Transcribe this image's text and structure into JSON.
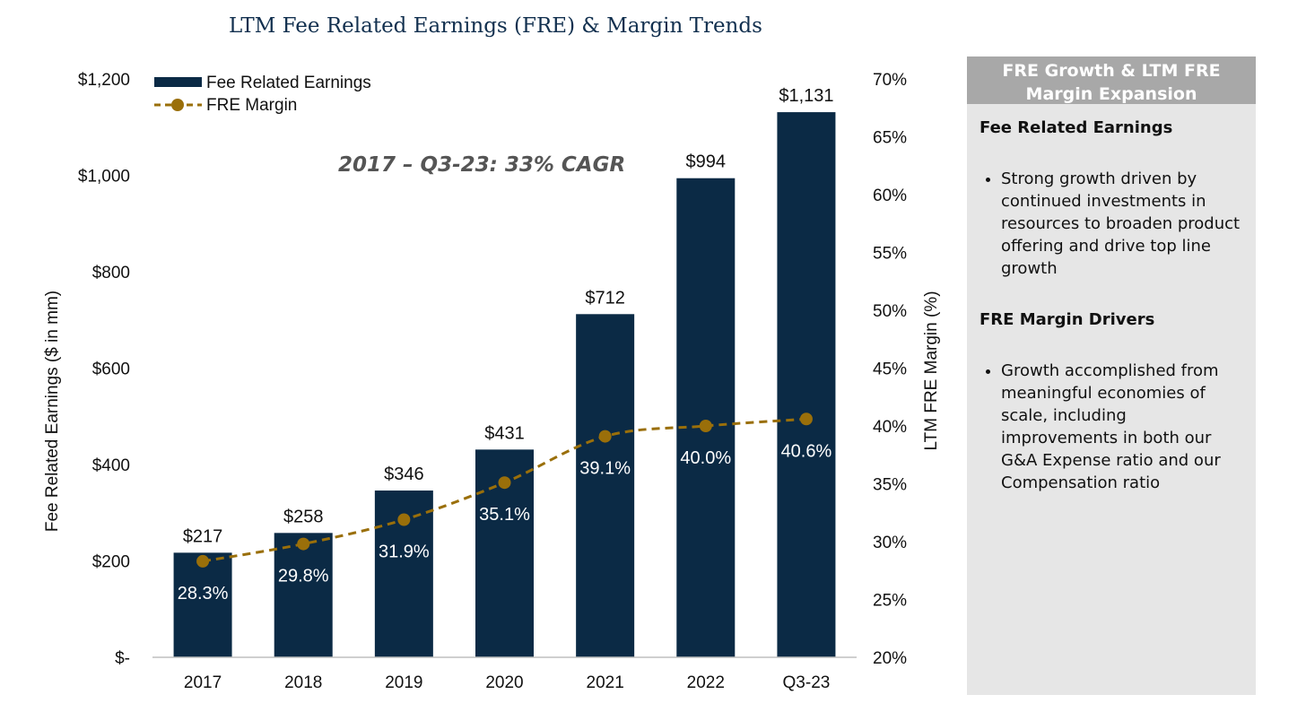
{
  "title": "LTM Fee Related Earnings (FRE) & Margin Trends",
  "chart_data": {
    "type": "bar",
    "categories": [
      "2017",
      "2018",
      "2019",
      "2020",
      "2021",
      "2022",
      "Q3-23"
    ],
    "series": [
      {
        "name": "Fee Related Earnings",
        "type": "bar",
        "axis": "left",
        "values": [
          217,
          258,
          346,
          431,
          712,
          994,
          1131
        ],
        "labels": [
          "$217",
          "$258",
          "$346",
          "$431",
          "$712",
          "$994",
          "$1,131"
        ],
        "color": "#0b2a45"
      },
      {
        "name": "FRE Margin",
        "type": "line",
        "axis": "right",
        "values": [
          28.3,
          29.8,
          31.9,
          35.1,
          39.1,
          40.0,
          40.6
        ],
        "labels": [
          "28.3%",
          "29.8%",
          "31.9%",
          "35.1%",
          "39.1%",
          "40.0%",
          "40.6%"
        ],
        "color": "#9a6f0a",
        "style": "dashed-with-markers"
      }
    ],
    "y_left": {
      "label": "Fee Related Earnings ($ in mm)",
      "lim": [
        0,
        1200
      ],
      "ticks": [
        "$-",
        "$200",
        "$400",
        "$600",
        "$800",
        "$1,000",
        "$1,200"
      ]
    },
    "y_right": {
      "label": "LTM FRE Margin (%)",
      "lim": [
        20,
        70
      ],
      "ticks": [
        "20%",
        "25%",
        "30%",
        "35%",
        "40%",
        "45%",
        "50%",
        "55%",
        "60%",
        "65%",
        "70%"
      ]
    },
    "annotation": "2017 – Q3-23: 33% CAGR",
    "legend_position": "top-left",
    "grid": false
  },
  "panel": {
    "header": "FRE Growth & LTM FRE Margin Expansion",
    "section1_title": "Fee Related Earnings",
    "section1_bullet": "Strong growth driven by continued investments in resources to broaden product offering and drive top line growth",
    "section2_title": "FRE Margin Drivers",
    "section2_bullet": "Growth accomplished from meaningful economies of scale, including improvements in both our G&A Expense ratio and our Compensation ratio",
    "header_color": "#a8a8a8",
    "background_color": "#e6e6e6"
  }
}
